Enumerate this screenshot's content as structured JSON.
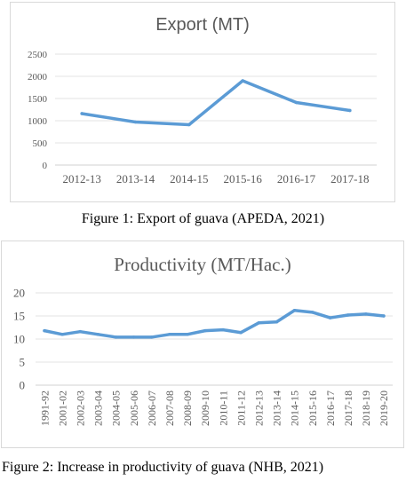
{
  "chart_data": [
    {
      "type": "line",
      "title": "Export (MT)",
      "categories": [
        "2012-13",
        "2013-14",
        "2014-15",
        "2015-16",
        "2016-17",
        "2017-18"
      ],
      "series": [
        {
          "values": [
            1160,
            970,
            910,
            1900,
            1410,
            1230
          ]
        }
      ],
      "ylim": [
        0,
        2500
      ],
      "yticks": [
        0,
        500,
        1000,
        1500,
        2000,
        2500
      ],
      "grid": true,
      "line_color": "#5b9bd5"
    },
    {
      "type": "line",
      "title": "Productivity (MT/Hac.)",
      "categories": [
        "1991-92",
        "2001-02",
        "2002-03",
        "2003-04",
        "2004-05",
        "2005-06",
        "2006-07",
        "2007-08",
        "2008-09",
        "2009-10",
        "2010-11",
        "2011-12",
        "2012-13",
        "2013-14",
        "2014-15",
        "2015-16",
        "2016-17",
        "2017-18",
        "2018-19",
        "2019-20"
      ],
      "series": [
        {
          "values": [
            11.8,
            11.0,
            11.6,
            11.0,
            10.4,
            10.4,
            10.4,
            11.0,
            11.0,
            11.8,
            12.0,
            11.4,
            13.5,
            13.7,
            16.2,
            15.8,
            14.6,
            15.2,
            15.4,
            15.0
          ]
        }
      ],
      "ylim": [
        0,
        20
      ],
      "yticks": [
        0,
        5,
        10,
        15,
        20
      ],
      "grid": true,
      "line_color": "#5b9bd5"
    }
  ],
  "captions": {
    "figure1": "Figure 1: Export of guava (APEDA, 2021)",
    "figure2": "Figure 2: Increase in productivity of guava (NHB, 2021)"
  }
}
